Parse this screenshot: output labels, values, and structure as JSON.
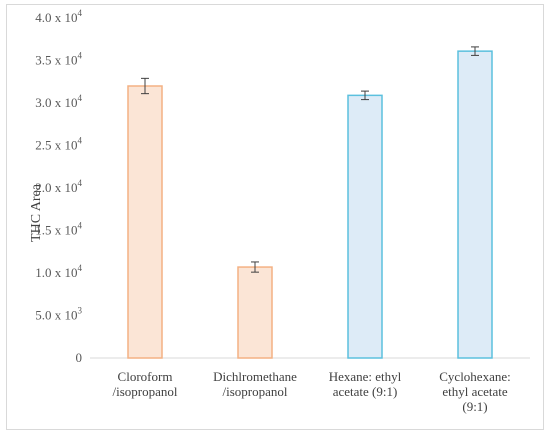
{
  "chart_data": {
    "type": "bar",
    "categories": [
      [
        "Cloroform",
        "/isopropanol"
      ],
      [
        "Dichlromethane",
        "/isopropanol"
      ],
      [
        "Hexane: ethyl",
        "acetate (9:1)"
      ],
      [
        "Cyclohexane:",
        "ethyl acetate",
        "(9:1)"
      ]
    ],
    "values": [
      32000,
      10700,
      30900,
      36100
    ],
    "errors": [
      900,
      600,
      500,
      500
    ],
    "ylabel": "THC Area",
    "ylim": [
      0,
      40000
    ],
    "y_ticks": [
      {
        "value": 0,
        "mantissa": "0",
        "exp": ""
      },
      {
        "value": 5000,
        "mantissa": "5.0 x 10",
        "exp": "3"
      },
      {
        "value": 10000,
        "mantissa": "1.0 x 10",
        "exp": "4"
      },
      {
        "value": 15000,
        "mantissa": "1.5 x 10",
        "exp": "4"
      },
      {
        "value": 20000,
        "mantissa": "2.0 x 10",
        "exp": "4"
      },
      {
        "value": 25000,
        "mantissa": "2.5 x 10",
        "exp": "4"
      },
      {
        "value": 30000,
        "mantissa": "3.0 x 10",
        "exp": "4"
      },
      {
        "value": 35000,
        "mantissa": "3.5 x 10",
        "exp": "4"
      },
      {
        "value": 40000,
        "mantissa": "4.0 x 10",
        "exp": "4"
      }
    ],
    "bar_fills": [
      "#fbe5d6",
      "#fbe5d6",
      "#ddebf7",
      "#ddebf7"
    ],
    "bar_strokes": [
      "#f4b183",
      "#f4b183",
      "#5bc0de",
      "#5bc0de"
    ],
    "grid": false
  }
}
